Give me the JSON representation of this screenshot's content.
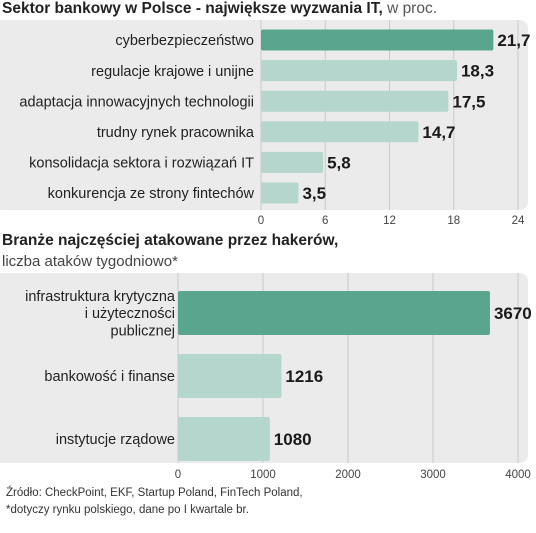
{
  "chart_data": [
    {
      "type": "bar",
      "orientation": "horizontal",
      "title": "Sektor bankowy w Polsce - największe wyzwania IT,",
      "subtitle": "w proc.",
      "categories": [
        "cyberbezpieczeństwo",
        "regulacje krajowe i unijne",
        "adaptacja innowacyjnych technologii",
        "trudny rynek pracownika",
        "konsolidacja sektora i rozwiązań IT",
        "konkurencja ze strony fintechów"
      ],
      "values": [
        21.7,
        18.3,
        17.5,
        14.7,
        5.8,
        3.5
      ],
      "value_labels": [
        "21,7",
        "18,3",
        "17,5",
        "14,7",
        "5,8",
        "3,5"
      ],
      "xlim": [
        0,
        24
      ],
      "xticks": [
        "0",
        "6",
        "12",
        "18",
        "24"
      ],
      "highlight_color": "#5aa58e",
      "bar_color": "#b4d6cd",
      "panel_color": "#ebebeb",
      "grid": true
    },
    {
      "type": "bar",
      "orientation": "horizontal",
      "title": "Branże najczęściej atakowane przez hakerów,",
      "subtitle": "liczba ataków tygodniowo*",
      "categories": [
        [
          "infrastruktura krytyczna",
          "i użyteczności",
          "publicznej"
        ],
        [
          "bankowość i finanse"
        ],
        [
          "instytucje rządowe"
        ]
      ],
      "values": [
        3670,
        1216,
        1080
      ],
      "value_labels": [
        "3670",
        "1216",
        "1080"
      ],
      "xlim": [
        0,
        4000
      ],
      "xticks": [
        "0",
        "1000",
        "2000",
        "3000",
        "4000"
      ],
      "highlight_color": "#5aa58e",
      "bar_color": "#b4d6cd",
      "panel_color": "#ebebeb",
      "grid": true
    }
  ],
  "footer": {
    "source": "Źródło: CheckPoint, EKF, Startup Poland, FinTech Poland,",
    "note": "*dotyczy rynku polskiego, dane po I kwartale br."
  }
}
